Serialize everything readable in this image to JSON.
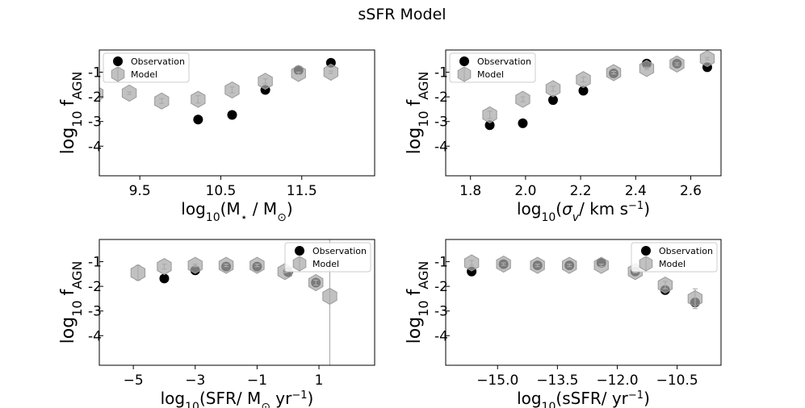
{
  "figure": {
    "title": "sSFR Model"
  },
  "colors": {
    "observation": "#000000",
    "model_fill": "#a9a9a9",
    "model_edge": "#9a9a9a",
    "errorbar": "#b0b0b0"
  },
  "chart_data": [
    {
      "type": "scatter",
      "xlabel": "log10(M⋆ / M⊙)",
      "ylabel": "log10 fAGN",
      "xlim": [
        9.0,
        12.4
      ],
      "ylim": [
        -5.2,
        -0.1
      ],
      "xticks": [
        9.5,
        10.5,
        11.5
      ],
      "xtick_labels": [
        "9.5",
        "10.5",
        "11.5"
      ],
      "yticks": [
        -1,
        -2,
        -3,
        -4
      ],
      "ytick_labels": [
        "-1",
        "-2",
        "-3",
        "-4"
      ],
      "legend": {
        "location": "upper left",
        "entries": [
          "Observation",
          "Model"
        ]
      },
      "series": [
        {
          "name": "Observation",
          "marker": "circle",
          "x": [
            10.22,
            10.64,
            11.05,
            11.46,
            11.86
          ],
          "y": [
            -2.92,
            -2.73,
            -1.72,
            -0.92,
            -0.62
          ]
        },
        {
          "name": "Model",
          "marker": "hexagon",
          "x": [
            8.96,
            9.37,
            9.77,
            10.22,
            10.64,
            11.05,
            11.46,
            11.86
          ],
          "y": [
            -1.88,
            -1.85,
            -2.17,
            -2.1,
            -1.72,
            -1.37,
            -1.05,
            -1.0
          ],
          "yerr": [
            0.05,
            0.05,
            0.1,
            0.15,
            0.12,
            0.1,
            0.05,
            0.05
          ]
        }
      ]
    },
    {
      "type": "scatter",
      "xlabel": "log10(σv/ km s⁻¹)",
      "ylabel": "log10 fAGN",
      "xlim": [
        1.71,
        2.71
      ],
      "ylim": [
        -5.2,
        -0.1
      ],
      "xticks": [
        1.8,
        2.0,
        2.2,
        2.4,
        2.6
      ],
      "xtick_labels": [
        "1.8",
        "2.0",
        "2.2",
        "2.4",
        "2.6"
      ],
      "yticks": [
        -1,
        -2,
        -3,
        -4
      ],
      "ytick_labels": [
        "-1",
        "-2",
        "-3",
        "-4"
      ],
      "legend": {
        "location": "upper left",
        "entries": [
          "Observation",
          "Model"
        ]
      },
      "series": [
        {
          "name": "Observation",
          "marker": "circle",
          "x": [
            1.87,
            1.99,
            2.1,
            2.21,
            2.32,
            2.44,
            2.55,
            2.66
          ],
          "y": [
            -3.15,
            -3.07,
            -2.13,
            -1.75,
            -1.05,
            -0.65,
            -0.65,
            -0.8
          ]
        },
        {
          "name": "Model",
          "marker": "hexagon",
          "x": [
            1.87,
            1.99,
            2.1,
            2.21,
            2.32,
            2.44,
            2.55,
            2.66
          ],
          "y": [
            -2.73,
            -2.1,
            -1.67,
            -1.3,
            -1.02,
            -0.85,
            -0.67,
            -0.45
          ],
          "yerr": [
            0.15,
            0.1,
            0.1,
            0.1,
            0.05,
            0.05,
            0.05,
            0.05
          ]
        }
      ]
    },
    {
      "type": "scatter",
      "xlabel": "log10(SFR/ M⊙ yr⁻¹)",
      "ylabel": "log10 fAGN",
      "xlim": [
        -6.1,
        2.8
      ],
      "ylim": [
        -5.2,
        -0.1
      ],
      "xticks": [
        -5,
        -3,
        -1,
        1
      ],
      "xtick_labels": [
        "−5",
        "−3",
        "−1",
        "1"
      ],
      "yticks": [
        -1,
        -2,
        -3,
        -4
      ],
      "ytick_labels": [
        "-1",
        "-2",
        "-3",
        "-4"
      ],
      "legend": {
        "location": "upper right",
        "entries": [
          "Observation",
          "Model"
        ]
      },
      "series": [
        {
          "name": "Observation",
          "marker": "circle",
          "x": [
            -4.0,
            -3.0,
            -2.0,
            -1.0,
            0.0,
            0.9
          ],
          "y": [
            -1.68,
            -1.35,
            -1.2,
            -1.2,
            -1.42,
            -1.85
          ]
        },
        {
          "name": "Model",
          "marker": "hexagon",
          "x": [
            -4.85,
            -4.0,
            -3.0,
            -2.0,
            -1.0,
            -0.1,
            0.9,
            1.35
          ],
          "y": [
            -1.45,
            -1.2,
            -1.15,
            -1.15,
            -1.15,
            -1.4,
            -1.85,
            -2.4
          ],
          "yerr": [
            0.3,
            0.1,
            0.05,
            0.05,
            0.05,
            0.05,
            0.1,
            3.5
          ]
        }
      ]
    },
    {
      "type": "scatter",
      "xlabel": "log10(sSFR/ yr⁻¹)",
      "ylabel": "log10 fAGN",
      "xlim": [
        -16.3,
        -9.4
      ],
      "ylim": [
        -5.2,
        -0.1
      ],
      "xticks": [
        -15.0,
        -13.5,
        -12.0,
        -10.5
      ],
      "xtick_labels": [
        "−15.0",
        "−13.5",
        "−12.0",
        "−10.5"
      ],
      "yticks": [
        -1,
        -2,
        -3,
        -4
      ],
      "ytick_labels": [
        "-1",
        "-2",
        "-3",
        "-4"
      ],
      "legend": {
        "location": "upper right",
        "entries": [
          "Observation",
          "Model"
        ]
      },
      "series": [
        {
          "name": "Observation",
          "marker": "circle",
          "x": [
            -15.65,
            -14.85,
            -14.0,
            -13.2,
            -12.4,
            -11.55,
            -10.8,
            -10.05
          ],
          "y": [
            -1.4,
            -1.1,
            -1.15,
            -1.15,
            -1.05,
            -1.4,
            -2.15,
            -2.65
          ]
        },
        {
          "name": "Model",
          "marker": "hexagon",
          "x": [
            -15.65,
            -14.85,
            -14.0,
            -13.2,
            -12.4,
            -11.55,
            -10.8,
            -10.05
          ],
          "y": [
            -1.05,
            -1.1,
            -1.15,
            -1.15,
            -1.15,
            -1.4,
            -1.95,
            -2.5
          ],
          "yerr": [
            0.1,
            0.05,
            0.05,
            0.05,
            0.05,
            0.05,
            0.15,
            0.4
          ]
        }
      ]
    }
  ]
}
